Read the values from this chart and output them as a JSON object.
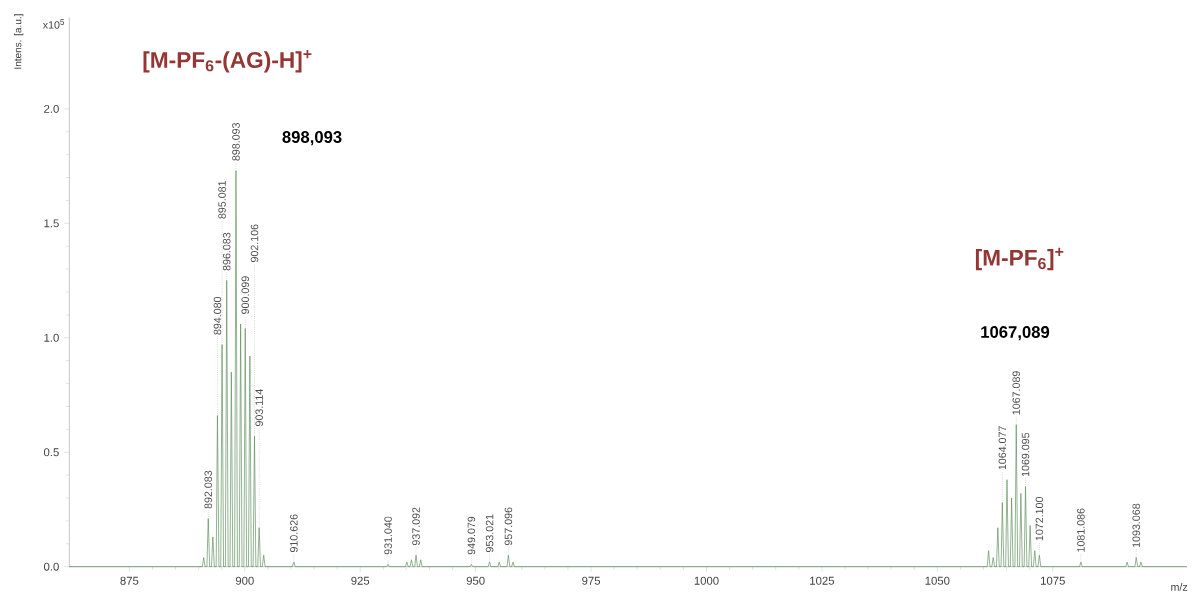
{
  "chart_data": {
    "type": "line",
    "xlabel": "m/z",
    "ylabel": "Intens. [a.u.]",
    "xlim": [
      862,
      1104
    ],
    "ylim": [
      0,
      2.4
    ],
    "xticks": [
      875,
      900,
      925,
      950,
      975,
      1000,
      1025,
      1050,
      1075
    ],
    "yticks": [
      {
        "value": 0,
        "label": "0.0"
      },
      {
        "value": 0.5,
        "label": "0.5"
      },
      {
        "value": 1,
        "label": "1.0"
      },
      {
        "value": 1.5,
        "label": "1.5"
      },
      {
        "value": 2,
        "label": "2.0"
      }
    ],
    "grid": false,
    "marker": "none",
    "line_style": "solid",
    "series": [
      {
        "color": "#5b8c5a",
        "x": [
          862,
          890.8,
          891.1,
          891.4,
          891.8,
          892.083,
          892.4,
          892.8,
          893.08,
          893.4,
          893.8,
          894.08,
          894.4,
          894.8,
          895.081,
          895.4,
          895.8,
          896.083,
          896.4,
          896.8,
          897.09,
          897.4,
          897.8,
          898.093,
          898.4,
          898.8,
          899.1,
          899.4,
          899.8,
          900.099,
          900.4,
          900.8,
          901.1,
          901.4,
          901.8,
          902.106,
          902.4,
          902.8,
          903.114,
          903.4,
          903.8,
          904.1,
          904.4,
          910.3,
          910.626,
          910.9,
          930.7,
          931.04,
          931.3,
          934.8,
          935.1,
          935.4,
          935.8,
          936.1,
          936.4,
          936.8,
          937.092,
          937.4,
          937.8,
          938.1,
          938.4,
          948.8,
          949.079,
          949.4,
          952.7,
          953.021,
          953.3,
          954.8,
          955.1,
          955.4,
          956.8,
          957.096,
          957.4,
          957.8,
          958.1,
          958.4,
          1060.8,
          1061.1,
          1061.4,
          1061.8,
          1062.1,
          1062.4,
          1062.8,
          1063.1,
          1063.4,
          1063.8,
          1064.077,
          1064.4,
          1064.8,
          1065.08,
          1065.4,
          1065.8,
          1066.08,
          1066.4,
          1066.8,
          1067.089,
          1067.4,
          1067.8,
          1068.09,
          1068.4,
          1068.8,
          1069.095,
          1069.4,
          1069.8,
          1070.1,
          1070.4,
          1070.8,
          1071.1,
          1071.4,
          1071.8,
          1072.1,
          1072.4,
          1080.8,
          1081.086,
          1081.4,
          1090.8,
          1091.1,
          1091.4,
          1092.8,
          1093.068,
          1093.4,
          1093.8,
          1094.1,
          1094.4,
          1104
        ],
        "values": [
          0,
          0,
          0.04,
          0,
          0,
          0.21,
          0,
          0,
          0.13,
          0,
          0,
          0.66,
          0,
          0,
          0.97,
          0,
          0,
          1.25,
          0,
          0,
          0.85,
          0,
          0,
          1.73,
          0,
          0,
          1.06,
          0,
          0,
          1.04,
          0,
          0,
          0.92,
          0,
          0,
          0.57,
          0,
          0,
          0.17,
          0,
          0,
          0.05,
          0,
          0,
          0.02,
          0,
          0,
          0.01,
          0,
          0,
          0.02,
          0,
          0,
          0.03,
          0,
          0,
          0.05,
          0,
          0,
          0.03,
          0,
          0,
          0.01,
          0,
          0,
          0.02,
          0,
          0,
          0.02,
          0,
          0,
          0.05,
          0,
          0,
          0.02,
          0,
          0,
          0.07,
          0,
          0,
          0.04,
          0,
          0,
          0.17,
          0,
          0,
          0.28,
          0,
          0,
          0.38,
          0,
          0,
          0.3,
          0,
          0,
          0.62,
          0,
          0,
          0.32,
          0,
          0,
          0.35,
          0,
          0,
          0.18,
          0,
          0,
          0.07,
          0,
          0,
          0.05,
          0,
          0,
          0.02,
          0,
          0,
          0.02,
          0,
          0,
          0.04,
          0,
          0,
          0.02,
          0,
          0
        ]
      }
    ],
    "annotations": [
      "[M-PF$_{6}$-(AG)-H]$^{+}$",
      "898,093",
      "[M-PF$_{6}$]$^{+}$",
      "1067,089",
      "x10$^{5}$",
      {
        "text": "892.083",
        "x": 892.083,
        "y": 0.21
      },
      {
        "text": "894.080",
        "x": 894.08,
        "y": 0.66
      },
      {
        "text": "895.081",
        "x": 895.081,
        "y": 0.97
      },
      {
        "text": "896.083",
        "x": 896.083,
        "y": 1.25
      },
      {
        "text": "898.093",
        "x": 898.093,
        "y": 1.73
      },
      {
        "text": "900.099",
        "x": 900.099,
        "y": 1.04
      },
      {
        "text": "902.106",
        "x": 902.106,
        "y": 0.57
      },
      {
        "text": "903.114",
        "x": 903.114,
        "y": 0.17
      },
      {
        "text": "910.626",
        "x": 910.626,
        "y": 0.02
      },
      {
        "text": "931.040",
        "x": 931.04,
        "y": 0.01
      },
      {
        "text": "937.092",
        "x": 937.092,
        "y": 0.05
      },
      {
        "text": "949.079",
        "x": 949.079,
        "y": 0.01
      },
      {
        "text": "953.021",
        "x": 953.021,
        "y": 0.02
      },
      {
        "text": "957.096",
        "x": 957.096,
        "y": 0.05
      },
      {
        "text": "1064.077",
        "x": 1064.077,
        "y": 0.28
      },
      {
        "text": "1067.089",
        "x": 1067.089,
        "y": 0.62
      },
      {
        "text": "1069.095",
        "x": 1069.095,
        "y": 0.35
      },
      {
        "text": "1072.100",
        "x": 1072.1,
        "y": 0.05
      },
      {
        "text": "1081.086",
        "x": 1081.086,
        "y": 0.02
      },
      {
        "text": "1093.068",
        "x": 1093.068,
        "y": 0.04
      }
    ]
  }
}
